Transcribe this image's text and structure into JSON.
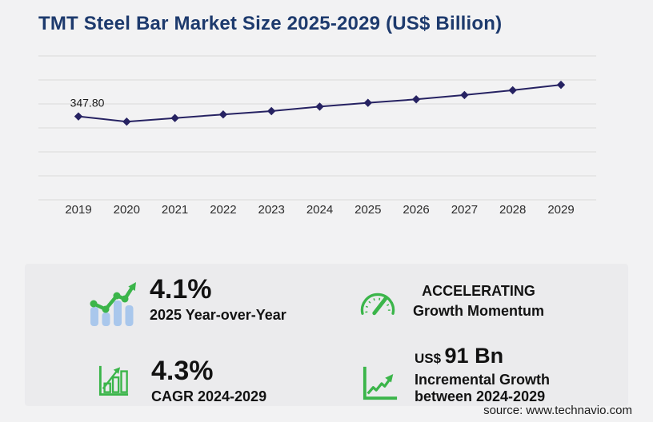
{
  "page": {
    "title": "TMT Steel Bar Market Size 2025-2029 (US$ Billion)",
    "source": "source: www.technavio.com",
    "background": "#f2f2f3",
    "panel_background": "#ebebed",
    "title_color": "#1d3a6d"
  },
  "chart_data": {
    "type": "line",
    "title": "TMT Steel Bar Market Size 2025-2029 (US$ Billion)",
    "x": [
      "2019",
      "2020",
      "2021",
      "2022",
      "2023",
      "2024",
      "2025",
      "2026",
      "2027",
      "2028",
      "2029"
    ],
    "series": [
      {
        "name": "Market size (US$ Billion)",
        "values": [
          347.8,
          326.0,
          341.0,
          356.0,
          370.0,
          388.6,
          404.5,
          419.0,
          437.0,
          457.0,
          479.6
        ]
      }
    ],
    "first_point_label": "347.80",
    "marker": "diamond",
    "line_color": "#262262",
    "grid_color": "#d9d9d9",
    "axis_label_color": "#2b2b2b",
    "point_label_color": "#1a1a1a",
    "ylim": [
      0,
      600
    ],
    "grid_step": 100,
    "grid": "horizontal",
    "legend": "none",
    "xlabel": "",
    "ylabel": ""
  },
  "stats": {
    "yoy": {
      "value": "4.1%",
      "label": "2025 Year-over-Year"
    },
    "momentum": {
      "line1": "ACCELERATING",
      "line2": "Growth Momentum"
    },
    "cagr": {
      "value": "4.3%",
      "label": "CAGR 2024-2029"
    },
    "incremental": {
      "currency": "US$",
      "amount": "91 Bn",
      "line1": "Incremental Growth",
      "line2": "between 2024-2029"
    }
  },
  "colors": {
    "accent_green": "#3bb54a",
    "bar_blue": "#a9c7ec",
    "line_navy": "#262262"
  }
}
